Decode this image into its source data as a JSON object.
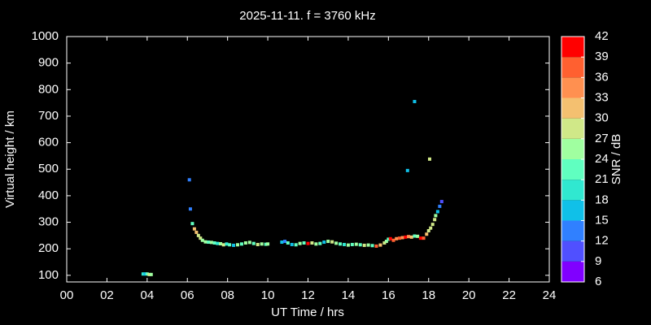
{
  "chart_data": {
    "type": "scatter",
    "title": "2025-11-11. f = 3760 kHz",
    "x_label": "UT Time / hrs",
    "y_label": "Virtual height / km",
    "xlim": [
      0,
      24
    ],
    "xticks": [
      {
        "value": 0,
        "label": "00"
      },
      {
        "value": 2,
        "label": "02"
      },
      {
        "value": 4,
        "label": "04"
      },
      {
        "value": 6,
        "label": "06"
      },
      {
        "value": 8,
        "label": "08"
      },
      10,
      12,
      14,
      16,
      18,
      20,
      22,
      24
    ],
    "ylim": [
      75,
      1000
    ],
    "yticks": [
      100,
      200,
      300,
      400,
      500,
      600,
      700,
      800,
      900,
      1000
    ],
    "colorbar": {
      "label": "SNR / dB",
      "lim": [
        6,
        42
      ],
      "ticks": [
        6,
        9,
        12,
        15,
        18,
        21,
        24,
        27,
        30,
        33,
        36,
        39,
        42
      ],
      "colors": [
        "#8000ff",
        "#5050ff",
        "#3080ff",
        "#10c0e8",
        "#30e8d0",
        "#60ffc0",
        "#a0ffa0",
        "#d0e888",
        "#f4c070",
        "#ff9050",
        "#ff6030",
        "#ff0000"
      ]
    },
    "series": [
      {
        "name": "SNR",
        "x": [
          3.8,
          3.9,
          4.0,
          4.1,
          4.2,
          6.1,
          6.15,
          6.25,
          6.35,
          6.45,
          6.55,
          6.65,
          6.75,
          6.9,
          7.05,
          7.2,
          7.35,
          7.5,
          7.65,
          7.8,
          7.95,
          8.1,
          8.3,
          8.5,
          8.7,
          8.9,
          9.1,
          9.3,
          9.5,
          9.7,
          9.9,
          10.0,
          10.7,
          10.85,
          11.0,
          11.2,
          11.4,
          11.6,
          11.8,
          12.0,
          12.2,
          12.4,
          12.6,
          12.8,
          13.0,
          13.2,
          13.4,
          13.6,
          13.8,
          14.0,
          14.2,
          14.4,
          14.6,
          14.8,
          15.0,
          15.2,
          15.4,
          15.6,
          15.8,
          15.9,
          16.0,
          16.1,
          16.25,
          16.4,
          16.55,
          16.7,
          16.85,
          17.0,
          17.15,
          17.3,
          17.45,
          17.6,
          17.75,
          17.9,
          18.0,
          18.1,
          18.2,
          18.3,
          18.35,
          18.45,
          18.55,
          18.65,
          16.95,
          17.3,
          18.05
        ],
        "y": [
          105,
          105,
          105,
          103,
          103,
          460,
          350,
          295,
          275,
          262,
          250,
          240,
          232,
          226,
          225,
          224,
          222,
          220,
          219,
          215,
          218,
          215,
          213,
          215,
          218,
          222,
          224,
          220,
          216,
          218,
          217,
          218,
          225,
          228,
          222,
          216,
          215,
          220,
          222,
          220,
          222,
          218,
          220,
          225,
          228,
          226,
          221,
          218,
          216,
          214,
          216,
          217,
          215,
          213,
          214,
          212,
          210,
          214,
          222,
          228,
          236,
          238,
          232,
          238,
          240,
          242,
          244,
          246,
          244,
          248,
          247,
          240,
          240,
          255,
          268,
          278,
          292,
          310,
          325,
          340,
          360,
          378,
          495,
          755,
          538
        ],
        "snr": [
          18,
          15,
          21,
          27,
          24,
          12,
          12,
          21,
          30,
          30,
          27,
          27,
          24,
          24,
          21,
          24,
          21,
          18,
          24,
          27,
          18,
          21,
          15,
          24,
          21,
          24,
          24,
          21,
          27,
          24,
          21,
          24,
          15,
          12,
          21,
          15,
          21,
          24,
          21,
          39,
          27,
          24,
          21,
          15,
          24,
          27,
          24,
          21,
          18,
          24,
          21,
          24,
          21,
          27,
          24,
          21,
          36,
          30,
          27,
          24,
          21,
          39,
          36,
          33,
          36,
          33,
          39,
          33,
          30,
          21,
          24,
          39,
          36,
          30,
          27,
          27,
          27,
          27,
          24,
          15,
          12,
          9,
          15,
          15,
          27
        ]
      }
    ]
  }
}
